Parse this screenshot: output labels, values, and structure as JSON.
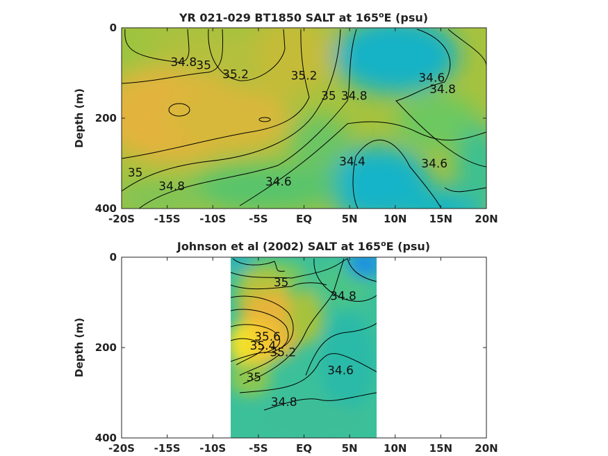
{
  "chart_data": [
    {
      "type": "heatmap",
      "title": "YR 021-029 BT1850 SALT at 165",
      "title_sup": "o",
      "title_end": "E (psu)",
      "ylabel": "Depth (m)",
      "xlim": [
        -20,
        20
      ],
      "ylim": [
        400,
        0
      ],
      "x_ticks": [
        "-20S",
        "-15S",
        "-10S",
        "-5S",
        "EQ",
        "5N",
        "10N",
        "15N",
        "20N"
      ],
      "y_ticks": [
        "0",
        "200",
        "400"
      ],
      "colormap": [
        "#1f96e0",
        "#14b4c8",
        "#2cc0a8",
        "#6cc860",
        "#b8c23c",
        "#e6b43a",
        "#f8d028"
      ],
      "contour_labels": [
        {
          "text": "34.8",
          "x": -13.2,
          "y": 75
        },
        {
          "text": "35",
          "x": -11,
          "y": 82
        },
        {
          "text": "35.2",
          "x": -7.5,
          "y": 102
        },
        {
          "text": "35.2",
          "x": 0,
          "y": 105
        },
        {
          "text": "35",
          "x": 2.7,
          "y": 150
        },
        {
          "text": "34.8",
          "x": 5.5,
          "y": 150
        },
        {
          "text": "34.6",
          "x": 14,
          "y": 110
        },
        {
          "text": "34.8",
          "x": 15.2,
          "y": 135
        },
        {
          "text": "35",
          "x": -18.5,
          "y": 320
        },
        {
          "text": "34.8",
          "x": -14.5,
          "y": 350
        },
        {
          "text": "34.6",
          "x": -2.8,
          "y": 340
        },
        {
          "text": "34.4",
          "x": 5.3,
          "y": 295
        },
        {
          "text": "34.6",
          "x": 14.3,
          "y": 300
        }
      ]
    },
    {
      "type": "heatmap",
      "title": "Johnson et al (2002) SALT at 165",
      "title_sup": "o",
      "title_end": "E (psu)",
      "ylabel": "Depth (m)",
      "xlim": [
        -20,
        20
      ],
      "ylim": [
        400,
        0
      ],
      "data_xrange": [
        -8,
        8
      ],
      "x_ticks": [
        "-20S",
        "-15S",
        "-10S",
        "-5S",
        "EQ",
        "5N",
        "10N",
        "15N",
        "20N"
      ],
      "y_ticks": [
        "0",
        "200",
        "400"
      ],
      "contour_labels": [
        {
          "text": "35",
          "x": -2.5,
          "y": 55
        },
        {
          "text": "34.8",
          "x": 4.3,
          "y": 85
        },
        {
          "text": "35.6",
          "x": -4,
          "y": 175
        },
        {
          "text": "35.4",
          "x": -4.5,
          "y": 195
        },
        {
          "text": "35.2",
          "x": -2.3,
          "y": 210
        },
        {
          "text": "35",
          "x": -5.5,
          "y": 265
        },
        {
          "text": "34.6",
          "x": 4,
          "y": 250
        },
        {
          "text": "34.8",
          "x": -2.2,
          "y": 320
        }
      ]
    }
  ]
}
